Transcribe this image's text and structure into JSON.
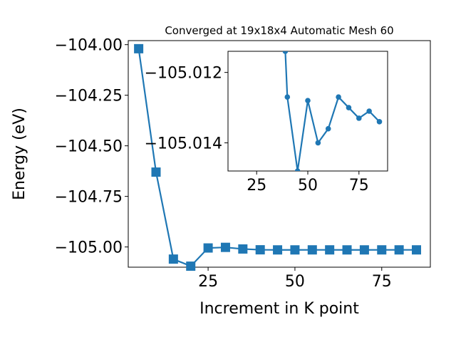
{
  "chart_data": [
    {
      "type": "line",
      "title": "Converged at 19x18x4 Automatic Mesh 60",
      "xlabel": "Increment in K point",
      "ylabel": "Energy (eV)",
      "xlim": [
        2,
        89
      ],
      "ylim": [
        -105.1,
        -103.98
      ],
      "x_ticks": [
        25,
        50,
        75
      ],
      "y_ticks": [
        -104.0,
        -104.25,
        -104.5,
        -104.75,
        -105.0
      ],
      "x_tick_labels": [
        "25",
        "50",
        "75"
      ],
      "y_tick_labels": [
        "−104.00",
        "−104.25",
        "−104.50",
        "−104.75",
        "−105.00"
      ],
      "marker": "square",
      "color": "#1f77b4",
      "series": [
        {
          "x": [
            5,
            10,
            15,
            20,
            25,
            30,
            35,
            40,
            45,
            50,
            55,
            60,
            65,
            70,
            75,
            80,
            85
          ],
          "y": [
            -104.02,
            -104.63,
            -105.06,
            -105.095,
            -105.005,
            -105.002,
            -105.01,
            -105.014,
            -105.0145,
            -105.0145,
            -105.0144,
            -105.0144,
            -105.0145,
            -105.0145,
            -105.0144,
            -105.0144,
            -105.0144
          ]
        }
      ]
    },
    {
      "type": "line",
      "title": "",
      "xlim": [
        11,
        89
      ],
      "ylim": [
        -105.0148,
        -105.0114
      ],
      "x_ticks": [
        25,
        50,
        75
      ],
      "y_ticks": [
        -105.014,
        -105.012
      ],
      "x_tick_labels": [
        "25",
        "50",
        "75"
      ],
      "y_tick_labels": [
        "−105.014",
        "−105.012"
      ],
      "marker": "circle",
      "color": "#1f77b4",
      "series": [
        {
          "x": [
            39,
            40,
            45,
            50,
            55,
            60,
            65,
            70,
            75,
            80,
            85
          ],
          "y": [
            -105.0114,
            -105.0127,
            -105.0148,
            -105.0128,
            -105.014,
            -105.0136,
            -105.0127,
            -105.013,
            -105.0133,
            -105.0131,
            -105.0134
          ]
        }
      ]
    }
  ]
}
